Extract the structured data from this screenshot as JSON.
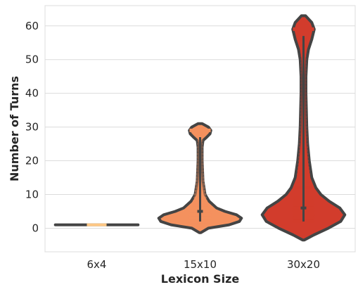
{
  "chart_data": {
    "type": "violin",
    "title": "",
    "xlabel": "Lexicon Size",
    "ylabel": "Number of Turns",
    "categories": [
      "6x4",
      "15x10",
      "30x20"
    ],
    "ylim": [
      -7,
      66
    ],
    "yticks": [
      0,
      10,
      20,
      30,
      40,
      50,
      60
    ],
    "ytick_labels": [
      "0",
      "10",
      "20",
      "30",
      "40",
      "50",
      "60"
    ],
    "grid": "horizontal",
    "legend": "none",
    "colors": {
      "6x4": "#fdc784",
      "15x10": "#f4915e",
      "30x20": "#d23c2c",
      "outline": "#444444",
      "grid": "#dcdcdc"
    },
    "distributions": [
      {
        "category": "6x4",
        "min": 1,
        "max": 1,
        "median": 1,
        "width_profile": [
          [
            1,
            1.0
          ]
        ],
        "points": [
          [
            1,
            1
          ]
        ]
      },
      {
        "category": "15x10",
        "min": 2,
        "max": 29,
        "median": 5,
        "width_profile": [
          [
            -1.3,
            0.02
          ],
          [
            0,
            0.2
          ],
          [
            1,
            0.7
          ],
          [
            2,
            0.95
          ],
          [
            3,
            1.0
          ],
          [
            4,
            0.88
          ],
          [
            5,
            0.6
          ],
          [
            6,
            0.4
          ],
          [
            8,
            0.22
          ],
          [
            10,
            0.12
          ],
          [
            14,
            0.07
          ],
          [
            20,
            0.05
          ],
          [
            24,
            0.05
          ],
          [
            26,
            0.07
          ],
          [
            27,
            0.16
          ],
          [
            28,
            0.24
          ],
          [
            29,
            0.26
          ],
          [
            30,
            0.2
          ],
          [
            31,
            0.05
          ]
        ],
        "points": [
          [
            2,
            40
          ],
          [
            3,
            40
          ],
          [
            4,
            35
          ],
          [
            5,
            30
          ],
          [
            6,
            25
          ],
          [
            7,
            20
          ],
          [
            8,
            18
          ],
          [
            9,
            14
          ],
          [
            10,
            12
          ],
          [
            11,
            10
          ],
          [
            12,
            8
          ],
          [
            13,
            7
          ],
          [
            14,
            6
          ],
          [
            15,
            5
          ],
          [
            16,
            4
          ],
          [
            17,
            4
          ],
          [
            18,
            3
          ],
          [
            19,
            3
          ],
          [
            20,
            2
          ],
          [
            21,
            2
          ],
          [
            22,
            2
          ],
          [
            23,
            1
          ],
          [
            24,
            1
          ],
          [
            25,
            1
          ],
          [
            26,
            1
          ],
          [
            28,
            1
          ],
          [
            29,
            1
          ]
        ]
      },
      {
        "category": "30x20",
        "min": 2,
        "max": 59,
        "median": 6,
        "width_profile": [
          [
            -3.5,
            0.02
          ],
          [
            -2,
            0.25
          ],
          [
            0,
            0.6
          ],
          [
            2,
            0.9
          ],
          [
            4,
            1.0
          ],
          [
            6,
            0.88
          ],
          [
            8,
            0.62
          ],
          [
            10,
            0.42
          ],
          [
            12,
            0.3
          ],
          [
            15,
            0.2
          ],
          [
            20,
            0.14
          ],
          [
            25,
            0.1
          ],
          [
            30,
            0.08
          ],
          [
            40,
            0.06
          ],
          [
            45,
            0.06
          ],
          [
            50,
            0.08
          ],
          [
            53,
            0.12
          ],
          [
            56,
            0.2
          ],
          [
            59,
            0.26
          ],
          [
            61,
            0.2
          ],
          [
            63,
            0.05
          ]
        ],
        "points": [
          [
            2,
            50
          ],
          [
            3,
            50
          ],
          [
            4,
            45
          ],
          [
            5,
            45
          ],
          [
            6,
            40
          ],
          [
            7,
            36
          ],
          [
            8,
            32
          ],
          [
            9,
            30
          ],
          [
            10,
            26
          ],
          [
            11,
            24
          ],
          [
            12,
            22
          ],
          [
            13,
            20
          ],
          [
            14,
            18
          ],
          [
            15,
            16
          ],
          [
            16,
            15
          ],
          [
            17,
            14
          ],
          [
            18,
            12
          ],
          [
            19,
            11
          ],
          [
            20,
            10
          ],
          [
            21,
            9
          ],
          [
            22,
            8
          ],
          [
            23,
            7
          ],
          [
            24,
            7
          ],
          [
            25,
            6
          ],
          [
            26,
            5
          ],
          [
            27,
            5
          ],
          [
            28,
            4
          ],
          [
            29,
            4
          ],
          [
            30,
            3
          ],
          [
            31,
            3
          ],
          [
            32,
            3
          ],
          [
            33,
            3
          ],
          [
            34,
            2
          ],
          [
            35,
            2
          ],
          [
            36,
            2
          ],
          [
            37,
            2
          ],
          [
            38,
            2
          ],
          [
            39,
            2
          ],
          [
            40,
            2
          ],
          [
            41,
            1
          ],
          [
            42,
            1
          ],
          [
            43,
            1
          ],
          [
            44,
            1
          ],
          [
            45,
            1
          ],
          [
            46,
            1
          ],
          [
            47,
            1
          ],
          [
            48,
            1
          ],
          [
            49,
            1
          ],
          [
            50,
            1
          ],
          [
            51,
            1
          ],
          [
            52,
            1
          ],
          [
            54,
            1
          ],
          [
            56,
            1
          ],
          [
            59,
            1
          ]
        ]
      }
    ]
  }
}
